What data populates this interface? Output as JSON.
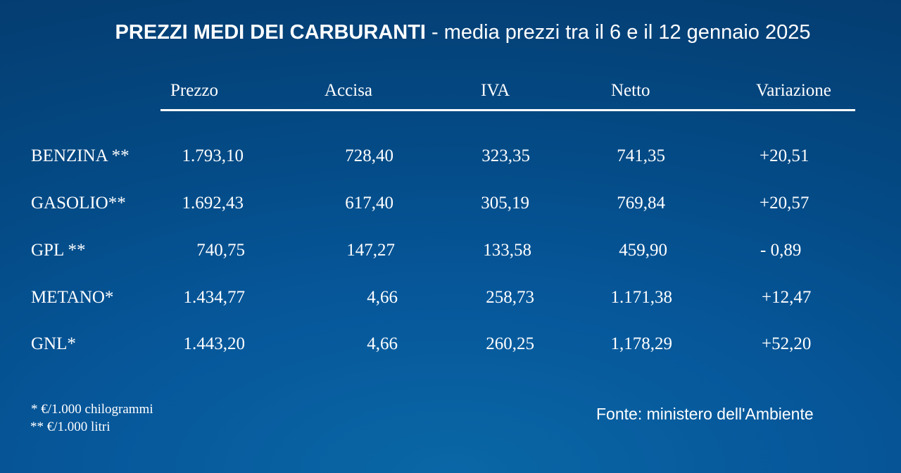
{
  "title": {
    "bold": "PREZZI MEDI DEI CARBURANTI",
    "rest": " - media prezzi tra il 6 e il 12 gennaio 2025"
  },
  "chart_data": {
    "type": "table",
    "title": "PREZZI MEDI DEI CARBURANTI - media prezzi tra il 6 e il 12 gennaio 2025",
    "columns": [
      "Prezzo",
      "Accisa",
      "IVA",
      "Netto",
      "Variazione"
    ],
    "rows": [
      {
        "name": "BENZINA **",
        "values": [
          "1.793,10",
          "728,40",
          "323,35",
          "741,35",
          "+20,51"
        ]
      },
      {
        "name": "GASOLIO**",
        "values": [
          "1.692,43",
          "617,40",
          "305,19",
          "769,84",
          "+20,57"
        ]
      },
      {
        "name": "GPL **",
        "values": [
          "740,75",
          "147,27",
          "133,58",
          "459,90",
          "- 0,89"
        ]
      },
      {
        "name": "METANO*",
        "values": [
          "1.434,77",
          "4,66",
          "258,73",
          "1.171,38",
          "+12,47"
        ]
      },
      {
        "name": "GNL*",
        "values": [
          "1.443,20",
          "4,66",
          "260,25",
          "1,178,29",
          "+52,20"
        ]
      }
    ]
  },
  "notes": {
    "kg": " * €/1.000 chilogrammi",
    "litri": "** €/1.000 litri"
  },
  "source": "Fonte: ministero dell'Ambiente"
}
